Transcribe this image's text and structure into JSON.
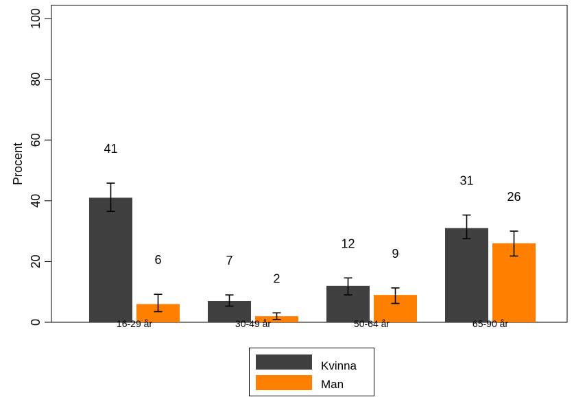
{
  "chart_data": {
    "type": "bar",
    "categories": [
      "16-29 år",
      "30-49 år",
      "50-64 år",
      "65-90 år"
    ],
    "series": [
      {
        "name": "Kvinna",
        "color": "#404040",
        "values": [
          41,
          7,
          12,
          31
        ],
        "ci_low": [
          36.5,
          5.3,
          9.0,
          27.5
        ],
        "ci_high": [
          45.8,
          9.0,
          14.6,
          35.3
        ]
      },
      {
        "name": "Man",
        "color": "#ff7f00",
        "values": [
          6,
          2,
          9,
          26
        ],
        "ci_low": [
          3.5,
          0.9,
          6.2,
          21.8
        ],
        "ci_high": [
          9.2,
          3.1,
          11.3,
          30.0
        ]
      }
    ],
    "data_labels": [
      [
        "41",
        "7",
        "12",
        "31"
      ],
      [
        "6",
        "2",
        "9",
        "26"
      ]
    ],
    "ylabel": "Procent",
    "xlabel": "",
    "ylim": [
      0,
      100
    ],
    "yticks": [
      "0",
      "20",
      "40",
      "60",
      "80",
      "100"
    ],
    "grid": false,
    "legend_position": "bottom"
  }
}
